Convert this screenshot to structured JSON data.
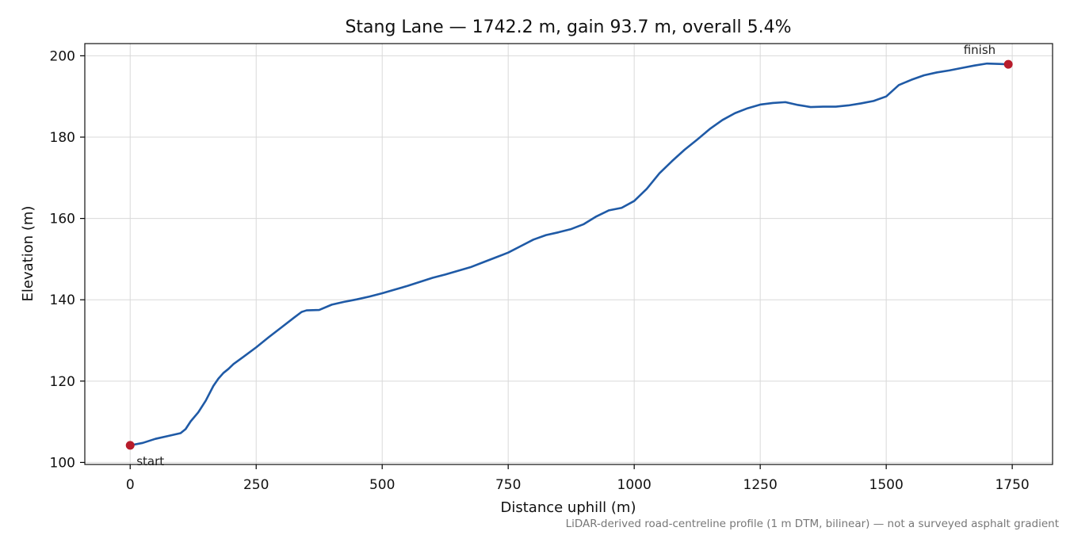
{
  "chart_data": {
    "type": "line",
    "title": "Stang Lane — 1742.2 m, gain 93.7 m, overall 5.4%",
    "xlabel": "Distance uphill (m)",
    "ylabel": "Elevation (m)",
    "xlim": [
      -90,
      1830
    ],
    "ylim": [
      99.5,
      203
    ],
    "xticks": [
      0,
      250,
      500,
      750,
      1000,
      1250,
      1500,
      1750
    ],
    "yticks": [
      100,
      120,
      140,
      160,
      180,
      200
    ],
    "grid": true,
    "line_color": "#1f5aa6",
    "marker_color": "#b71c2b",
    "footnote": "LiDAR-derived road-centreline profile (1 m DTM, bilinear) — not a surveyed asphalt gradient",
    "series": [
      {
        "x": [
          0,
          25,
          50,
          75,
          100,
          110,
          120,
          135,
          150,
          165,
          175,
          185,
          195,
          205,
          225,
          250,
          275,
          300,
          325,
          340,
          350,
          375,
          400,
          425,
          450,
          475,
          500,
          525,
          550,
          575,
          600,
          625,
          650,
          675,
          700,
          725,
          750,
          775,
          800,
          825,
          850,
          875,
          900,
          925,
          950,
          975,
          1000,
          1025,
          1050,
          1075,
          1100,
          1125,
          1150,
          1175,
          1200,
          1225,
          1250,
          1275,
          1300,
          1325,
          1350,
          1375,
          1400,
          1425,
          1450,
          1475,
          1500,
          1525,
          1550,
          1575,
          1600,
          1625,
          1650,
          1675,
          1700,
          1725,
          1742.2
        ],
        "y": [
          104.2,
          104.8,
          105.8,
          106.5,
          107.2,
          108.2,
          110.1,
          112.3,
          115.2,
          118.8,
          120.6,
          122.0,
          123.0,
          124.2,
          126.0,
          128.3,
          130.8,
          133.2,
          135.6,
          137.0,
          137.4,
          137.5,
          138.8,
          139.5,
          140.1,
          140.8,
          141.6,
          142.5,
          143.4,
          144.4,
          145.4,
          146.2,
          147.1,
          148.0,
          149.2,
          150.4,
          151.6,
          153.2,
          154.8,
          155.9,
          156.6,
          157.4,
          158.6,
          160.5,
          162.0,
          162.6,
          164.3,
          167.3,
          171.1,
          174.1,
          176.9,
          179.4,
          182.0,
          184.2,
          185.9,
          187.1,
          188.0,
          188.4,
          188.6,
          187.9,
          187.4,
          187.5,
          187.5,
          187.8,
          188.3,
          188.9,
          190.0,
          192.8,
          194.1,
          195.2,
          195.9,
          196.4,
          197.0,
          197.6,
          198.1,
          198.0,
          197.9
        ]
      }
    ],
    "annotations": [
      {
        "text": "start",
        "x": 0,
        "y": 104.2
      },
      {
        "text": "finish",
        "x": 1742.2,
        "y": 197.9
      }
    ]
  }
}
